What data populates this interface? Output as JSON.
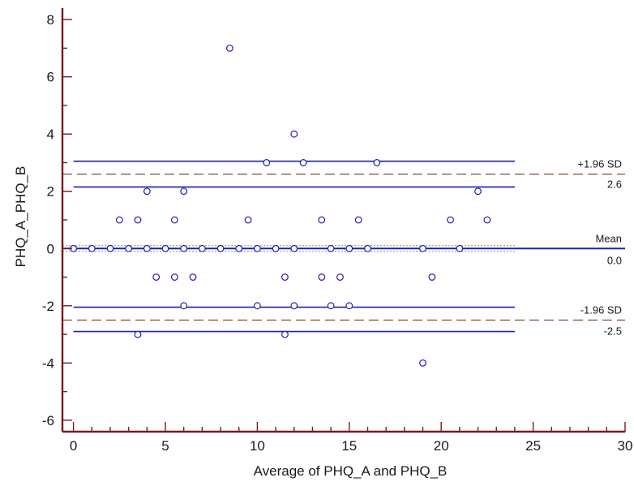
{
  "chart_data": {
    "type": "scatter",
    "xlabel": "Average of PHQ_A and PHQ_B",
    "ylabel": "PHQ_A_PHQ_B",
    "xlim": [
      -0.6,
      30
    ],
    "ylim": [
      -6.4,
      8.4
    ],
    "x_ticks": [
      0,
      5,
      10,
      15,
      20,
      25,
      30
    ],
    "y_ticks": [
      8,
      6,
      4,
      2,
      0,
      -2,
      -4,
      -6
    ],
    "grid": false,
    "colors": {
      "axis": "#7a1a1a",
      "reference_lines": "#1f1fb4",
      "limit_dashes": "#7a3a20",
      "points": "#1f1fb4"
    },
    "points": [
      {
        "x": 0,
        "y": 0
      },
      {
        "x": 1,
        "y": 0
      },
      {
        "x": 2,
        "y": 0
      },
      {
        "x": 2.5,
        "y": 1
      },
      {
        "x": 3,
        "y": 0
      },
      {
        "x": 3.5,
        "y": 1
      },
      {
        "x": 3.5,
        "y": -3
      },
      {
        "x": 4,
        "y": 2
      },
      {
        "x": 4,
        "y": 0
      },
      {
        "x": 4.5,
        "y": -1
      },
      {
        "x": 5,
        "y": 0
      },
      {
        "x": 5.5,
        "y": 1
      },
      {
        "x": 5.5,
        "y": -1
      },
      {
        "x": 6,
        "y": 2
      },
      {
        "x": 6,
        "y": 0
      },
      {
        "x": 6,
        "y": -2
      },
      {
        "x": 6.5,
        "y": -1
      },
      {
        "x": 7,
        "y": 0
      },
      {
        "x": 8,
        "y": 0
      },
      {
        "x": 8.5,
        "y": 7
      },
      {
        "x": 9,
        "y": 0
      },
      {
        "x": 9.5,
        "y": 1
      },
      {
        "x": 10,
        "y": 0
      },
      {
        "x": 10,
        "y": -2
      },
      {
        "x": 10.5,
        "y": 3
      },
      {
        "x": 11,
        "y": 0
      },
      {
        "x": 11.5,
        "y": -1
      },
      {
        "x": 11.5,
        "y": -3
      },
      {
        "x": 12,
        "y": 4
      },
      {
        "x": 12,
        "y": 0
      },
      {
        "x": 12,
        "y": -2
      },
      {
        "x": 12.5,
        "y": 3
      },
      {
        "x": 13.5,
        "y": 1
      },
      {
        "x": 13.5,
        "y": -1
      },
      {
        "x": 14,
        "y": 0
      },
      {
        "x": 14,
        "y": -2
      },
      {
        "x": 14.5,
        "y": -1
      },
      {
        "x": 15,
        "y": 0
      },
      {
        "x": 15,
        "y": -2
      },
      {
        "x": 15.5,
        "y": 1
      },
      {
        "x": 16,
        "y": 0
      },
      {
        "x": 16.5,
        "y": 3
      },
      {
        "x": 19,
        "y": 0
      },
      {
        "x": 19,
        "y": -4
      },
      {
        "x": 19.5,
        "y": -1
      },
      {
        "x": 20.5,
        "y": 1
      },
      {
        "x": 21,
        "y": 0
      },
      {
        "x": 22,
        "y": 2
      },
      {
        "x": 22.5,
        "y": 1
      }
    ],
    "mean": {
      "label": "Mean",
      "value": 0.0,
      "value_label": "0.0",
      "ci": [
        -0.1,
        0.1
      ]
    },
    "upper_loa": {
      "label": "+1.96 SD",
      "value": 2.6,
      "value_label": "2.6",
      "ci": [
        2.15,
        3.05
      ]
    },
    "lower_loa": {
      "label": "-1.96 SD",
      "value": -2.5,
      "value_label": "-2.5",
      "ci": [
        -2.05,
        -2.9
      ]
    },
    "ci_x_range": [
      0,
      24
    ]
  }
}
